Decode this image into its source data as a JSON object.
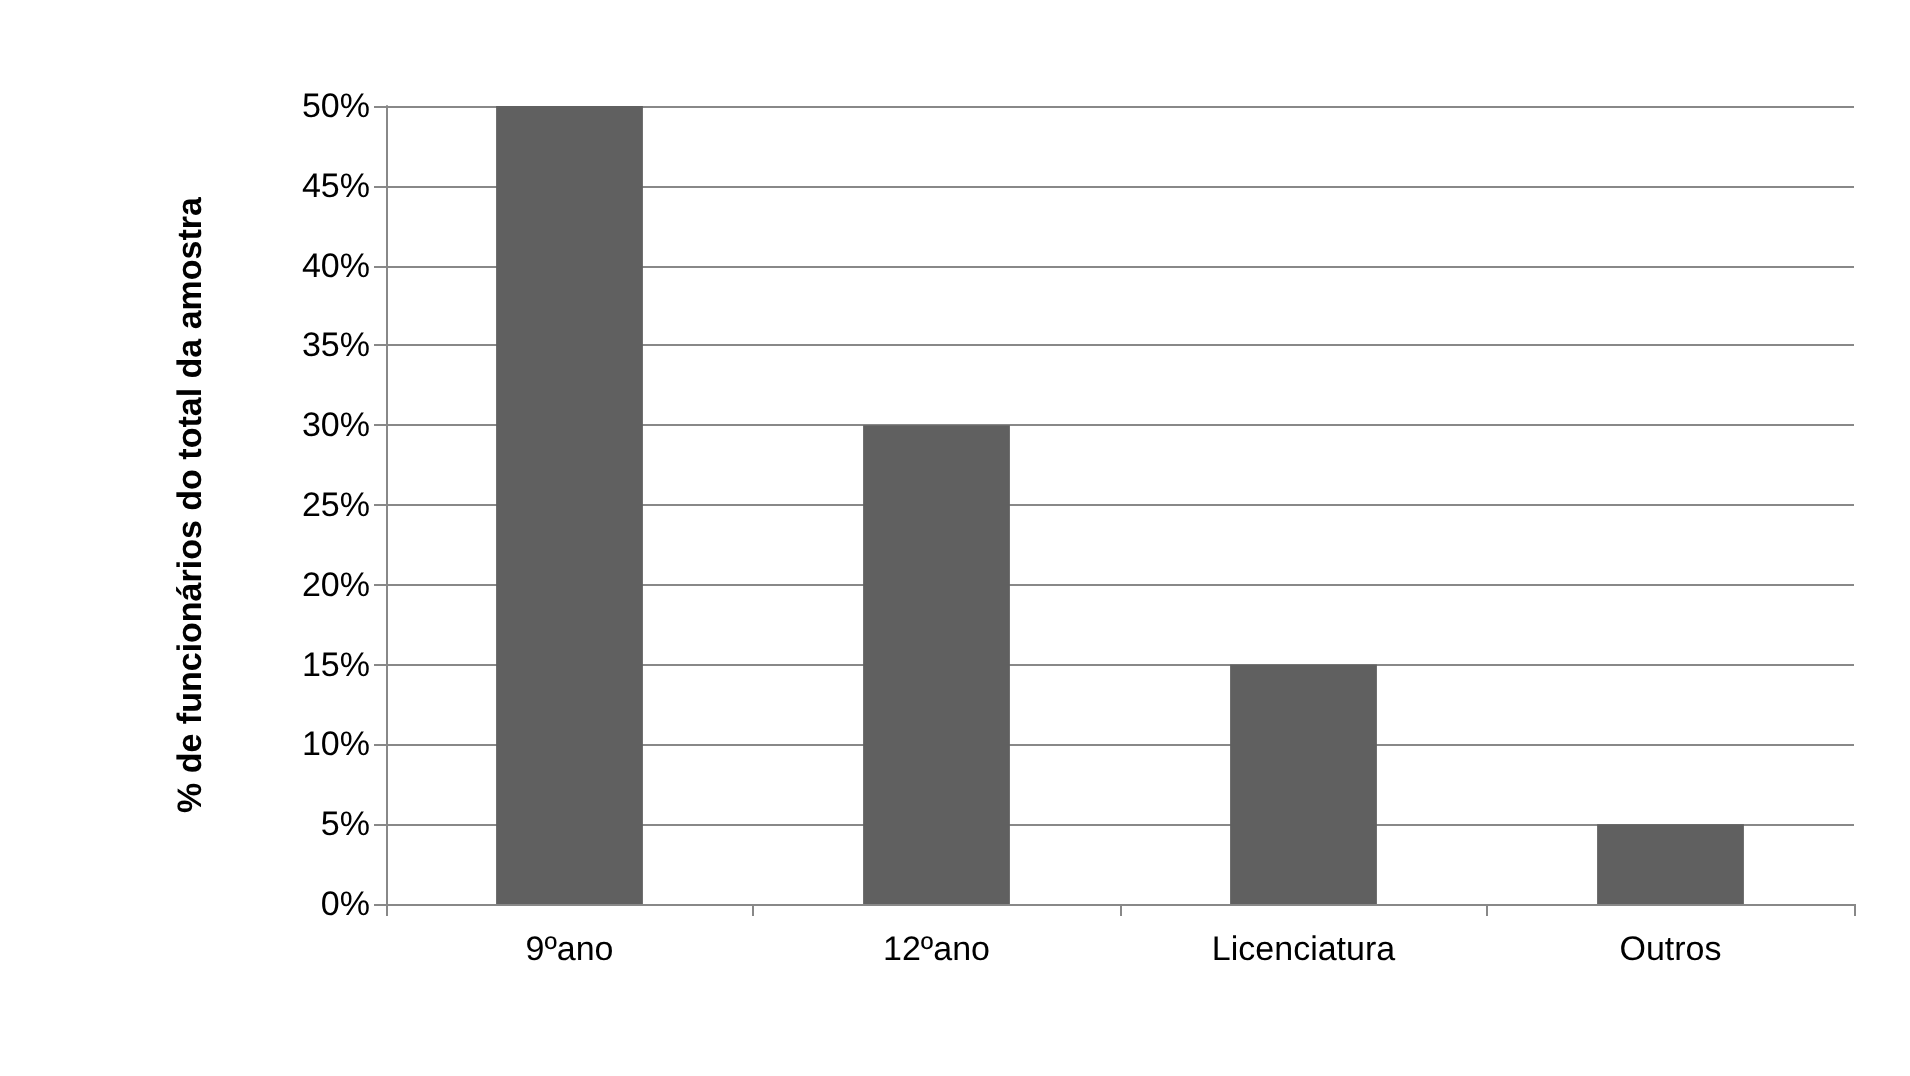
{
  "chart_data": {
    "type": "bar",
    "ylabel": "% de funcionários do total da amostra",
    "categories": [
      "9ºano",
      "12ºano",
      "Licenciatura",
      "Outros"
    ],
    "values": [
      50,
      30,
      15,
      5
    ],
    "color": "#606060",
    "ylim": [
      0,
      50
    ],
    "yticks": [
      {
        "value": 0,
        "label": "0%"
      },
      {
        "value": 5,
        "label": "5%"
      },
      {
        "value": 10,
        "label": "10%"
      },
      {
        "value": 15,
        "label": "15%"
      },
      {
        "value": 20,
        "label": "20%"
      },
      {
        "value": 25,
        "label": "25%"
      },
      {
        "value": 30,
        "label": "30%"
      },
      {
        "value": 35,
        "label": "35%"
      },
      {
        "value": 40,
        "label": "40%"
      },
      {
        "value": 45,
        "label": "45%"
      },
      {
        "value": 50,
        "label": "50%"
      }
    ],
    "grid": "y"
  }
}
